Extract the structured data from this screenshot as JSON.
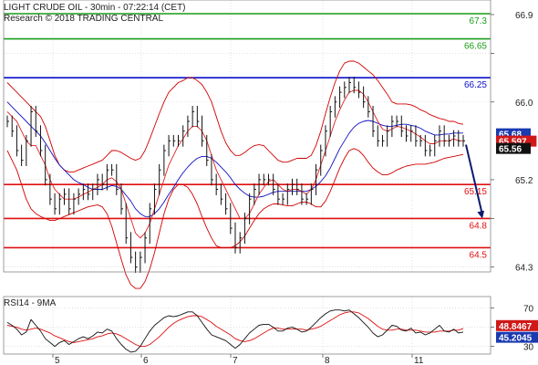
{
  "header": {
    "line1": "LIGHT CRUDE OIL - 30min - 07:22:14 (CET)",
    "line2": "Research © 2018 TRADING CENTRAL"
  },
  "colors": {
    "resistance_top": "#1a9e1a",
    "pivot": "#0a10c8",
    "support": "#e01010",
    "price": "#111111",
    "ma_fast": "#e02020",
    "ma_slow": "#1010c0",
    "band": "#d00000",
    "arrow": "#0a1a6e",
    "rsi": "#111111",
    "rsi_ma": "#e01010",
    "tag_blue": "#1a3ab0",
    "tag_red": "#d01818",
    "tag_dark": "#111111"
  },
  "chart_data": [
    {
      "type": "line",
      "title": "LIGHT CRUDE OIL - 30min - 07:22:14 (CET)",
      "x_ticks": [
        "5",
        "6",
        "7",
        "8",
        "11"
      ],
      "y_ticks": [
        66.9,
        66.5,
        66.0,
        65.2,
        64.8,
        64.3
      ],
      "y_tick_labels": [
        "66.9",
        "",
        "66.0",
        "65.2",
        "",
        "64.3"
      ],
      "ylim": [
        64.25,
        67.05
      ],
      "levels": [
        {
          "label": "67.3",
          "value": 67.3,
          "kind": "resistance_top"
        },
        {
          "label": "66.65",
          "value": 66.65,
          "kind": "resistance_top"
        },
        {
          "label": "66.25",
          "value": 66.25,
          "kind": "pivot"
        },
        {
          "label": "65.15",
          "value": 65.15,
          "kind": "support"
        },
        {
          "label": "64.8",
          "value": 64.8,
          "kind": "support"
        },
        {
          "label": "64.5",
          "value": 64.5,
          "kind": "support"
        }
      ],
      "price_tags": [
        {
          "label": "65.68",
          "value": 65.68,
          "kind": "tag_blue"
        },
        {
          "label": "65.597",
          "value": 65.597,
          "kind": "tag_red"
        },
        {
          "label": "65.56",
          "value": 65.56,
          "kind": "tag_dark"
        }
      ],
      "price": [
        65.8,
        65.7,
        65.5,
        65.4,
        65.6,
        65.9,
        65.7,
        65.5,
        65.2,
        65.0,
        64.9,
        65.0,
        65.05,
        64.9,
        65.0,
        65.05,
        65.1,
        65.05,
        65.1,
        65.2,
        65.15,
        65.3,
        65.3,
        65.1,
        64.9,
        64.6,
        64.4,
        64.3,
        64.4,
        64.6,
        64.9,
        65.1,
        65.3,
        65.5,
        65.6,
        65.6,
        65.6,
        65.7,
        65.8,
        65.9,
        65.8,
        65.6,
        65.4,
        65.2,
        65.1,
        65.0,
        64.9,
        64.7,
        64.5,
        64.6,
        64.8,
        65.0,
        65.1,
        65.2,
        65.2,
        65.2,
        65.1,
        65.0,
        65.0,
        65.1,
        65.15,
        65.1,
        65.0,
        65.0,
        65.1,
        65.3,
        65.5,
        65.7,
        65.9,
        66.0,
        66.1,
        66.15,
        66.2,
        66.15,
        66.1,
        66.0,
        65.9,
        65.7,
        65.6,
        65.6,
        65.7,
        65.8,
        65.8,
        65.7,
        65.65,
        65.7,
        65.6,
        65.6,
        65.5,
        65.5,
        65.6,
        65.7,
        65.6,
        65.6,
        65.65,
        65.6,
        65.6
      ],
      "ma_fast": [
        65.9,
        65.85,
        65.8,
        65.7,
        65.6,
        65.55,
        65.55,
        65.45,
        65.35,
        65.2,
        65.1,
        65.05,
        65.0,
        65.0,
        65.0,
        65.02,
        65.05,
        65.07,
        65.1,
        65.12,
        65.15,
        65.2,
        65.22,
        65.18,
        65.1,
        64.95,
        64.8,
        64.65,
        64.6,
        64.65,
        64.75,
        64.9,
        65.05,
        65.2,
        65.35,
        65.45,
        65.55,
        65.62,
        65.7,
        65.75,
        65.75,
        65.7,
        65.6,
        65.45,
        65.3,
        65.2,
        65.1,
        65.0,
        64.9,
        64.8,
        64.8,
        64.85,
        64.95,
        65.05,
        65.12,
        65.18,
        65.2,
        65.15,
        65.1,
        65.08,
        65.1,
        65.1,
        65.08,
        65.05,
        65.1,
        65.2,
        65.35,
        65.5,
        65.65,
        65.8,
        65.92,
        66.02,
        66.1,
        66.12,
        66.12,
        66.08,
        66.0,
        65.9,
        65.8,
        65.72,
        65.7,
        65.72,
        65.75,
        65.74,
        65.72,
        65.7,
        65.67,
        65.64,
        65.6,
        65.57,
        65.57,
        65.6,
        65.6,
        65.6,
        65.62,
        65.6,
        65.6
      ],
      "ma_slow": [
        66.0,
        65.95,
        65.9,
        65.85,
        65.8,
        65.75,
        65.7,
        65.65,
        65.58,
        65.5,
        65.42,
        65.35,
        65.3,
        65.25,
        65.2,
        65.17,
        65.15,
        65.12,
        65.1,
        65.1,
        65.1,
        65.12,
        65.14,
        65.13,
        65.1,
        65.04,
        64.98,
        64.9,
        64.85,
        64.82,
        64.82,
        64.85,
        64.9,
        64.97,
        65.05,
        65.12,
        65.2,
        65.27,
        65.33,
        65.38,
        65.42,
        65.44,
        65.44,
        65.42,
        65.38,
        65.33,
        65.28,
        65.22,
        65.15,
        65.1,
        65.06,
        65.03,
        65.02,
        65.02,
        65.03,
        65.05,
        65.07,
        65.08,
        65.08,
        65.08,
        65.08,
        65.08,
        65.08,
        65.08,
        65.1,
        65.13,
        65.18,
        65.24,
        65.32,
        65.42,
        65.52,
        65.6,
        65.68,
        65.74,
        65.78,
        65.8,
        65.81,
        65.8,
        65.78,
        65.76,
        65.75,
        65.75,
        65.76,
        65.77,
        65.77,
        65.76,
        65.75,
        65.73,
        65.7,
        65.68,
        65.66,
        65.66,
        65.67,
        65.67,
        65.68,
        65.68,
        65.68
      ],
      "band_upper": [
        66.2,
        66.15,
        66.1,
        66.05,
        66.0,
        65.95,
        65.9,
        65.85,
        65.75,
        65.6,
        65.45,
        65.35,
        65.3,
        65.28,
        65.28,
        65.3,
        65.32,
        65.34,
        65.36,
        65.38,
        65.4,
        65.45,
        65.5,
        65.5,
        65.48,
        65.45,
        65.42,
        65.4,
        65.42,
        65.5,
        65.62,
        65.75,
        65.88,
        66.0,
        66.1,
        66.15,
        66.2,
        66.22,
        66.25,
        66.25,
        66.22,
        66.18,
        66.1,
        66.0,
        65.85,
        65.7,
        65.58,
        65.5,
        65.45,
        65.45,
        65.48,
        65.52,
        65.55,
        65.56,
        65.55,
        65.5,
        65.45,
        65.4,
        65.38,
        65.38,
        65.4,
        65.42,
        65.42,
        65.42,
        65.45,
        65.55,
        65.7,
        65.88,
        66.05,
        66.2,
        66.32,
        66.4,
        66.42,
        66.42,
        66.4,
        66.36,
        66.32,
        66.28,
        66.22,
        66.15,
        66.08,
        66.0,
        65.98,
        65.98,
        65.98,
        65.97,
        65.95,
        65.92,
        65.9,
        65.87,
        65.85,
        65.83,
        65.82,
        65.8,
        65.8,
        65.78,
        65.77
      ],
      "band_lower": [
        65.5,
        65.4,
        65.3,
        65.15,
        65.0,
        64.9,
        64.85,
        64.82,
        64.8,
        64.78,
        64.78,
        64.8,
        64.82,
        64.84,
        64.86,
        64.88,
        64.9,
        64.92,
        64.93,
        64.94,
        64.92,
        64.85,
        64.72,
        64.55,
        64.38,
        64.22,
        64.12,
        64.08,
        64.08,
        64.15,
        64.28,
        64.45,
        64.65,
        64.85,
        65.0,
        65.1,
        65.15,
        65.15,
        65.12,
        65.05,
        64.95,
        64.82,
        64.7,
        64.6,
        64.52,
        64.5,
        64.5,
        64.5,
        64.52,
        64.56,
        64.62,
        64.7,
        64.78,
        64.85,
        64.9,
        64.93,
        64.95,
        64.95,
        64.94,
        64.93,
        64.93,
        64.95,
        64.97,
        64.97,
        64.95,
        64.92,
        64.92,
        64.98,
        65.08,
        65.2,
        65.32,
        65.42,
        65.5,
        65.52,
        65.5,
        65.45,
        65.38,
        65.32,
        65.28,
        65.25,
        65.25,
        65.27,
        65.3,
        65.32,
        65.34,
        65.35,
        65.36,
        65.36,
        65.36,
        65.37,
        65.38,
        65.4,
        65.42,
        65.43,
        65.44,
        65.45,
        65.46
      ],
      "projection_arrow": {
        "from": 65.56,
        "to": 64.8
      }
    },
    {
      "type": "line",
      "title": "RSI14 - 9MA",
      "y_ticks": [
        70,
        50,
        30
      ],
      "y_tick_labels": [
        "70",
        "",
        "30"
      ],
      "ylim": [
        22,
        82
      ],
      "price_tags": [
        {
          "label": "48.8467",
          "value": 48.8467,
          "kind": "tag_red"
        },
        {
          "label": "45.2045",
          "value": 45.2045,
          "kind": "tag_blue"
        }
      ],
      "rsi": [
        55,
        52,
        48,
        42,
        45,
        58,
        52,
        46,
        38,
        34,
        30,
        34,
        36,
        32,
        35,
        38,
        40,
        38,
        41,
        45,
        44,
        48,
        46,
        38,
        32,
        27,
        24,
        25,
        30,
        38,
        46,
        52,
        56,
        60,
        62,
        61,
        62,
        64,
        66,
        66,
        62,
        55,
        48,
        42,
        40,
        38,
        36,
        32,
        28,
        32,
        38,
        44,
        48,
        52,
        53,
        53,
        50,
        46,
        46,
        49,
        50,
        48,
        45,
        46,
        50,
        55,
        60,
        64,
        67,
        68,
        68,
        67,
        68,
        64,
        60,
        55,
        50,
        44,
        40,
        42,
        47,
        52,
        51,
        47,
        46,
        49,
        44,
        45,
        42,
        44,
        48,
        52,
        46,
        45,
        48,
        44,
        45
      ],
      "rsi_ma": [
        52,
        51,
        50,
        48,
        47,
        48,
        49,
        48,
        46,
        44,
        41,
        39,
        37,
        35,
        34,
        35,
        36,
        37,
        38,
        40,
        41,
        43,
        44,
        43,
        41,
        38,
        35,
        32,
        30,
        30,
        32,
        36,
        40,
        45,
        50,
        54,
        57,
        59,
        61,
        62,
        62,
        61,
        58,
        55,
        51,
        48,
        45,
        42,
        38,
        36,
        35,
        36,
        38,
        41,
        44,
        47,
        49,
        49,
        48,
        48,
        48,
        48,
        48,
        47,
        48,
        49,
        51,
        54,
        57,
        60,
        63,
        65,
        66,
        66,
        65,
        62,
        59,
        55,
        51,
        48,
        47,
        47,
        48,
        48,
        47,
        47,
        47,
        46,
        45,
        45,
        45,
        46,
        46,
        46,
        47,
        47,
        48.8
      ]
    }
  ]
}
